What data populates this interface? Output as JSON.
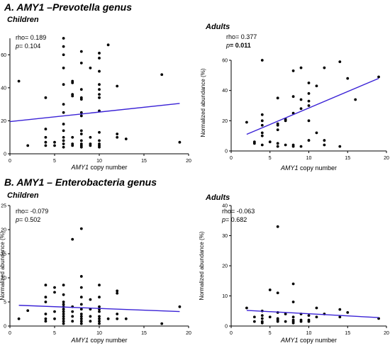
{
  "figure": {
    "panel_a_title": "A. AMY1 –Prevotella genus",
    "panel_b_title": "B. AMY1 – Enterobacteria genus"
  },
  "chart_data": [
    {
      "id": "a-children",
      "type": "scatter",
      "title": "Children",
      "xlabel_italic": "AMY1",
      "xlabel_rest": " copy number",
      "ylabel": "",
      "xlim": [
        0,
        20
      ],
      "ylim": [
        0,
        70
      ],
      "xticks": [
        0,
        5,
        10,
        15,
        20
      ],
      "yticks": [
        0,
        20,
        40,
        60
      ],
      "stats": {
        "rho": "rho= 0.189",
        "p_label": "p",
        "p_value": "= 0.104",
        "p_bold": false
      },
      "regression": {
        "x": [
          0,
          19
        ],
        "y": [
          19.5,
          30.5
        ],
        "color": "#3a22d6"
      },
      "points": [
        {
          "x": 1,
          "y": 44
        },
        {
          "x": 2,
          "y": 5
        },
        {
          "x": 4,
          "y": 34
        },
        {
          "x": 4,
          "y": 15
        },
        {
          "x": 4,
          "y": 10
        },
        {
          "x": 4,
          "y": 7
        },
        {
          "x": 4,
          "y": 5
        },
        {
          "x": 5,
          "y": 7
        },
        {
          "x": 5,
          "y": 5
        },
        {
          "x": 6,
          "y": 70
        },
        {
          "x": 6,
          "y": 65
        },
        {
          "x": 6,
          "y": 60
        },
        {
          "x": 6,
          "y": 52
        },
        {
          "x": 6,
          "y": 42
        },
        {
          "x": 6,
          "y": 30
        },
        {
          "x": 6,
          "y": 25
        },
        {
          "x": 6,
          "y": 18
        },
        {
          "x": 6,
          "y": 14
        },
        {
          "x": 6,
          "y": 10
        },
        {
          "x": 6,
          "y": 8
        },
        {
          "x": 6,
          "y": 6
        },
        {
          "x": 6,
          "y": 4
        },
        {
          "x": 7,
          "y": 44
        },
        {
          "x": 7,
          "y": 43
        },
        {
          "x": 7,
          "y": 36
        },
        {
          "x": 7,
          "y": 35
        },
        {
          "x": 7,
          "y": 10
        },
        {
          "x": 7,
          "y": 6
        },
        {
          "x": 7,
          "y": 5
        },
        {
          "x": 8,
          "y": 62
        },
        {
          "x": 8,
          "y": 55
        },
        {
          "x": 8,
          "y": 39
        },
        {
          "x": 8,
          "y": 34
        },
        {
          "x": 8,
          "y": 33
        },
        {
          "x": 8,
          "y": 25
        },
        {
          "x": 8,
          "y": 23
        },
        {
          "x": 8,
          "y": 14
        },
        {
          "x": 8,
          "y": 12
        },
        {
          "x": 8,
          "y": 8
        },
        {
          "x": 8,
          "y": 6
        },
        {
          "x": 8,
          "y": 5
        },
        {
          "x": 8,
          "y": 4
        },
        {
          "x": 9,
          "y": 52
        },
        {
          "x": 9,
          "y": 10
        },
        {
          "x": 9,
          "y": 6
        },
        {
          "x": 9,
          "y": 5
        },
        {
          "x": 10,
          "y": 61
        },
        {
          "x": 10,
          "y": 58
        },
        {
          "x": 10,
          "y": 50
        },
        {
          "x": 10,
          "y": 42
        },
        {
          "x": 10,
          "y": 39
        },
        {
          "x": 10,
          "y": 36
        },
        {
          "x": 10,
          "y": 34
        },
        {
          "x": 10,
          "y": 26
        },
        {
          "x": 10,
          "y": 13
        },
        {
          "x": 10,
          "y": 8
        },
        {
          "x": 10,
          "y": 6
        },
        {
          "x": 10,
          "y": 5
        },
        {
          "x": 10,
          "y": 4
        },
        {
          "x": 11,
          "y": 66
        },
        {
          "x": 12,
          "y": 41
        },
        {
          "x": 12,
          "y": 12
        },
        {
          "x": 12,
          "y": 10
        },
        {
          "x": 13,
          "y": 9
        },
        {
          "x": 17,
          "y": 48
        },
        {
          "x": 19,
          "y": 7
        }
      ]
    },
    {
      "id": "a-adults",
      "type": "scatter",
      "title": "Adults",
      "xlabel_italic": "AMY1",
      "xlabel_rest": " copy number",
      "ylabel": "Normalized abundance (%)",
      "xlim": [
        0,
        20
      ],
      "ylim": [
        0,
        60
      ],
      "xticks": [
        0,
        5,
        10,
        15,
        20
      ],
      "yticks": [
        0,
        20,
        40,
        60
      ],
      "stats": {
        "rho": "rho= 0.377",
        "p_label": "p",
        "p_value": "= 0.011",
        "p_bold": true
      },
      "regression": {
        "x": [
          2,
          19
        ],
        "y": [
          11,
          48
        ],
        "color": "#3a22d6"
      },
      "points": [
        {
          "x": 2,
          "y": 19
        },
        {
          "x": 3,
          "y": 6
        },
        {
          "x": 3,
          "y": 5
        },
        {
          "x": 4,
          "y": 60
        },
        {
          "x": 4,
          "y": 24
        },
        {
          "x": 4,
          "y": 20
        },
        {
          "x": 4,
          "y": 17
        },
        {
          "x": 4,
          "y": 12
        },
        {
          "x": 4,
          "y": 10
        },
        {
          "x": 4,
          "y": 4
        },
        {
          "x": 5,
          "y": 6
        },
        {
          "x": 6,
          "y": 35
        },
        {
          "x": 6,
          "y": 18
        },
        {
          "x": 6,
          "y": 17
        },
        {
          "x": 6,
          "y": 14
        },
        {
          "x": 6,
          "y": 5
        },
        {
          "x": 6,
          "y": 3
        },
        {
          "x": 7,
          "y": 21
        },
        {
          "x": 7,
          "y": 20
        },
        {
          "x": 7,
          "y": 4
        },
        {
          "x": 8,
          "y": 53
        },
        {
          "x": 8,
          "y": 36
        },
        {
          "x": 8,
          "y": 25
        },
        {
          "x": 8,
          "y": 4
        },
        {
          "x": 8,
          "y": 3
        },
        {
          "x": 9,
          "y": 55
        },
        {
          "x": 9,
          "y": 34
        },
        {
          "x": 9,
          "y": 28
        },
        {
          "x": 9,
          "y": 3
        },
        {
          "x": 10,
          "y": 45
        },
        {
          "x": 10,
          "y": 38
        },
        {
          "x": 10,
          "y": 33
        },
        {
          "x": 10,
          "y": 30
        },
        {
          "x": 10,
          "y": 20
        },
        {
          "x": 10,
          "y": 7
        },
        {
          "x": 11,
          "y": 43
        },
        {
          "x": 11,
          "y": 12
        },
        {
          "x": 12,
          "y": 55
        },
        {
          "x": 12,
          "y": 7
        },
        {
          "x": 12,
          "y": 4
        },
        {
          "x": 14,
          "y": 59
        },
        {
          "x": 14,
          "y": 3
        },
        {
          "x": 15,
          "y": 48
        },
        {
          "x": 16,
          "y": 34
        },
        {
          "x": 19,
          "y": 49
        }
      ]
    },
    {
      "id": "b-children",
      "type": "scatter",
      "title": "Children",
      "xlabel_italic": "AMY1",
      "xlabel_rest": " copy number",
      "ylabel": "Normalized abundance (%)",
      "xlim": [
        0,
        20
      ],
      "ylim": [
        0,
        25
      ],
      "xticks": [
        0,
        5,
        10,
        15,
        20
      ],
      "yticks": [
        0,
        5,
        10,
        15,
        20,
        25
      ],
      "stats": {
        "rho": "rho= -0.079",
        "p_label": "p",
        "p_value": "= 0.502",
        "p_bold": false
      },
      "regression": {
        "x": [
          1,
          19
        ],
        "y": [
          4.3,
          3.0
        ],
        "color": "#3a22d6"
      },
      "points": [
        {
          "x": 1,
          "y": 1.5
        },
        {
          "x": 2,
          "y": 3.2
        },
        {
          "x": 4,
          "y": 8.5
        },
        {
          "x": 4,
          "y": 6
        },
        {
          "x": 4,
          "y": 5
        },
        {
          "x": 4,
          "y": 2.5
        },
        {
          "x": 4,
          "y": 1.5
        },
        {
          "x": 4,
          "y": 1
        },
        {
          "x": 5,
          "y": 8
        },
        {
          "x": 5,
          "y": 7
        },
        {
          "x": 5,
          "y": 3
        },
        {
          "x": 5,
          "y": 1.5
        },
        {
          "x": 6,
          "y": 8.5
        },
        {
          "x": 6,
          "y": 6.5
        },
        {
          "x": 6,
          "y": 5
        },
        {
          "x": 6,
          "y": 4.5
        },
        {
          "x": 6,
          "y": 4
        },
        {
          "x": 6,
          "y": 3.5
        },
        {
          "x": 6,
          "y": 3
        },
        {
          "x": 6,
          "y": 2.5
        },
        {
          "x": 6,
          "y": 2
        },
        {
          "x": 6,
          "y": 1.5
        },
        {
          "x": 6,
          "y": 1
        },
        {
          "x": 6,
          "y": 0.5
        },
        {
          "x": 7,
          "y": 18
        },
        {
          "x": 7,
          "y": 4
        },
        {
          "x": 7,
          "y": 3
        },
        {
          "x": 7,
          "y": 2
        },
        {
          "x": 7,
          "y": 1
        },
        {
          "x": 8,
          "y": 20.2
        },
        {
          "x": 8,
          "y": 10.3
        },
        {
          "x": 8,
          "y": 8
        },
        {
          "x": 8,
          "y": 6
        },
        {
          "x": 8,
          "y": 4.5
        },
        {
          "x": 8,
          "y": 3.5
        },
        {
          "x": 8,
          "y": 2.5
        },
        {
          "x": 8,
          "y": 2
        },
        {
          "x": 8,
          "y": 1.5
        },
        {
          "x": 8,
          "y": 1
        },
        {
          "x": 8,
          "y": 0.5
        },
        {
          "x": 9,
          "y": 5.5
        },
        {
          "x": 9,
          "y": 3.5
        },
        {
          "x": 9,
          "y": 2
        },
        {
          "x": 9,
          "y": 1
        },
        {
          "x": 10,
          "y": 8.5
        },
        {
          "x": 10,
          "y": 6
        },
        {
          "x": 10,
          "y": 4
        },
        {
          "x": 10,
          "y": 3.5
        },
        {
          "x": 10,
          "y": 3
        },
        {
          "x": 10,
          "y": 2
        },
        {
          "x": 10,
          "y": 1.5
        },
        {
          "x": 10,
          "y": 1
        },
        {
          "x": 10,
          "y": 0.5
        },
        {
          "x": 11,
          "y": 1.5
        },
        {
          "x": 12,
          "y": 7.3
        },
        {
          "x": 12,
          "y": 6.8
        },
        {
          "x": 12,
          "y": 2.5
        },
        {
          "x": 12,
          "y": 1.5
        },
        {
          "x": 13,
          "y": 1.5
        },
        {
          "x": 17,
          "y": 0.5
        },
        {
          "x": 19,
          "y": 4
        }
      ]
    },
    {
      "id": "b-adults",
      "type": "scatter",
      "title": "Adults",
      "xlabel_italic": "AMY1",
      "xlabel_rest": " copy number",
      "ylabel": "Normalized abundance (%)",
      "xlim": [
        0,
        20
      ],
      "ylim": [
        0,
        40
      ],
      "xticks": [
        0,
        5,
        10,
        15,
        20
      ],
      "yticks": [
        0,
        10,
        20,
        30,
        40
      ],
      "stats": {
        "rho": "rho= -0.063",
        "p_label": "p",
        "p_value": "= 0.682",
        "p_bold": false
      },
      "regression": {
        "x": [
          2,
          19
        ],
        "y": [
          5.2,
          2.8
        ],
        "color": "#3a22d6"
      },
      "points": [
        {
          "x": 2,
          "y": 6
        },
        {
          "x": 3,
          "y": 3
        },
        {
          "x": 3,
          "y": 1.5
        },
        {
          "x": 4,
          "y": 5
        },
        {
          "x": 4,
          "y": 3.5
        },
        {
          "x": 4,
          "y": 2.5
        },
        {
          "x": 4,
          "y": 1.5
        },
        {
          "x": 4,
          "y": 1
        },
        {
          "x": 5,
          "y": 12
        },
        {
          "x": 5,
          "y": 3
        },
        {
          "x": 6,
          "y": 33
        },
        {
          "x": 6,
          "y": 11
        },
        {
          "x": 6,
          "y": 4.5
        },
        {
          "x": 6,
          "y": 2.5
        },
        {
          "x": 6,
          "y": 2
        },
        {
          "x": 6,
          "y": 1.5
        },
        {
          "x": 7,
          "y": 4
        },
        {
          "x": 7,
          "y": 1.5
        },
        {
          "x": 8,
          "y": 14
        },
        {
          "x": 8,
          "y": 8
        },
        {
          "x": 8,
          "y": 3
        },
        {
          "x": 8,
          "y": 2
        },
        {
          "x": 8,
          "y": 1.5
        },
        {
          "x": 8,
          "y": 1
        },
        {
          "x": 9,
          "y": 4
        },
        {
          "x": 9,
          "y": 2
        },
        {
          "x": 9,
          "y": 1.5
        },
        {
          "x": 10,
          "y": 3.5
        },
        {
          "x": 10,
          "y": 2
        },
        {
          "x": 10,
          "y": 1.5
        },
        {
          "x": 11,
          "y": 6
        },
        {
          "x": 11,
          "y": 3
        },
        {
          "x": 12,
          "y": 4
        },
        {
          "x": 14,
          "y": 5.5
        },
        {
          "x": 14,
          "y": 3
        },
        {
          "x": 15,
          "y": 4.5
        },
        {
          "x": 19,
          "y": 2.5
        }
      ]
    }
  ]
}
